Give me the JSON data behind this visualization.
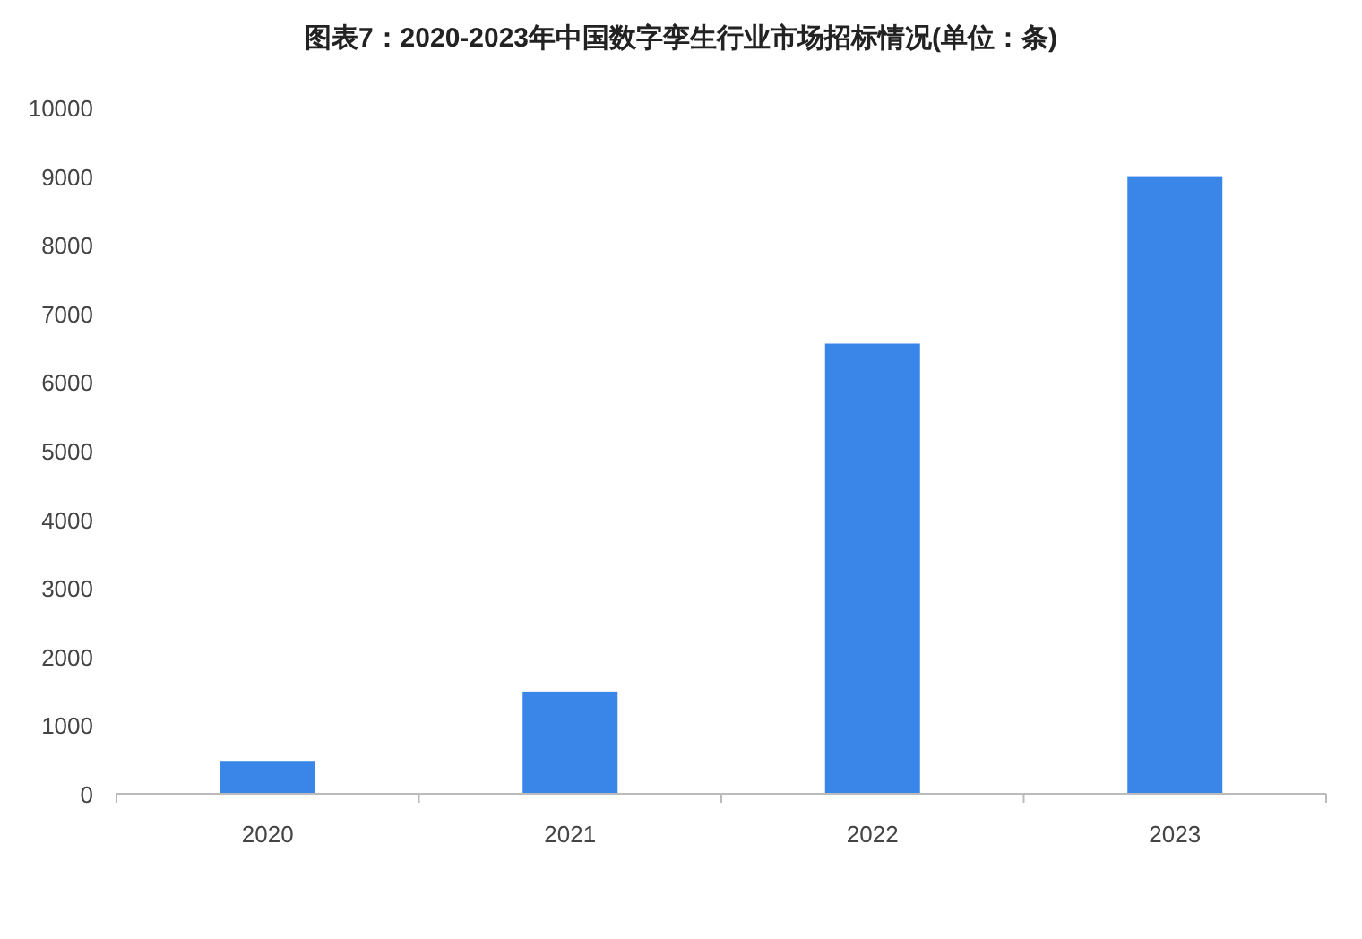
{
  "chart_data": {
    "type": "bar",
    "title": "图表7：2020-2023年中国数字孪生行业市场招标情况(单位：条)",
    "categories": [
      "2020",
      "2021",
      "2022",
      "2023"
    ],
    "values": [
      480,
      1490,
      6560,
      9000
    ],
    "color": "#3a86e8",
    "ylim": [
      0,
      10000
    ],
    "yticks": [
      0,
      1000,
      2000,
      3000,
      4000,
      5000,
      6000,
      7000,
      8000,
      9000,
      10000
    ],
    "grid": false
  }
}
